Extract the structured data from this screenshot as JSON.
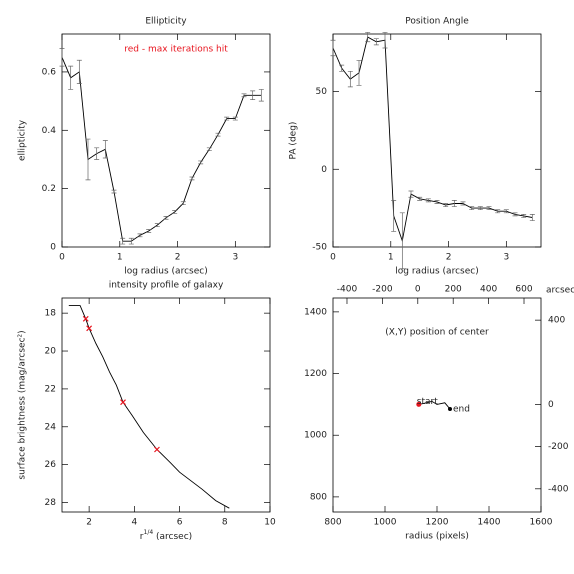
{
  "chart_data": [
    {
      "type": "line",
      "title": "Ellipticity",
      "x_label": "log radius (arcsec)",
      "y_label": "ellipticity",
      "annotation": {
        "text": "red - max iterations hit",
        "color": "#e8141e"
      },
      "xlim": [
        0,
        3.6
      ],
      "ylim": [
        0,
        0.73
      ],
      "xticks": [
        0,
        1,
        2,
        3
      ],
      "yticks": [
        0,
        0.2,
        0.4,
        0.6
      ],
      "series": [
        {
          "color": "#000000",
          "x": [
            0,
            0.15,
            0.3,
            0.45,
            0.6,
            0.75,
            0.9,
            1.05,
            1.2,
            1.35,
            1.5,
            1.65,
            1.8,
            1.95,
            2.1,
            2.25,
            2.4,
            2.55,
            2.7,
            2.85,
            3.0,
            3.15,
            3.3,
            3.45
          ],
          "values": [
            0.65,
            0.58,
            0.6,
            0.3,
            0.32,
            0.335,
            0.19,
            0.02,
            0.02,
            0.04,
            0.055,
            0.075,
            0.1,
            0.12,
            0.15,
            0.235,
            0.29,
            0.335,
            0.385,
            0.44,
            0.44,
            0.52,
            0.52,
            0.52
          ],
          "errors": [
            0.03,
            0.04,
            0.04,
            0.07,
            0.02,
            0.03,
            0.005,
            0.01,
            0.01,
            0.005,
            0.005,
            0.005,
            0.005,
            0.005,
            0.005,
            0.005,
            0.005,
            0.005,
            0.005,
            0.005,
            0.005,
            0.005,
            0.015,
            0.02
          ]
        }
      ]
    },
    {
      "type": "line",
      "title": "Position Angle",
      "x_label": "log radius (arcsec)",
      "y_label": "PA (deg)",
      "xlim": [
        0,
        3.6
      ],
      "ylim": [
        -50,
        87
      ],
      "xticks": [
        0,
        1,
        2,
        3
      ],
      "yticks": [
        -50,
        0,
        50
      ],
      "series": [
        {
          "color": "#000000",
          "x": [
            0,
            0.15,
            0.3,
            0.45,
            0.6,
            0.75,
            0.9,
            1.05,
            1.2,
            1.35,
            1.5,
            1.65,
            1.8,
            1.95,
            2.1,
            2.25,
            2.4,
            2.55,
            2.7,
            2.85,
            3.0,
            3.15,
            3.3,
            3.45
          ],
          "values": [
            78,
            65,
            58,
            62,
            85,
            82,
            83,
            -30,
            -46,
            -16,
            -19,
            -20,
            -21,
            -23,
            -22,
            -22,
            -25,
            -25,
            -25,
            -27,
            -27,
            -29,
            -30,
            -31
          ],
          "errors": [
            5,
            2,
            5,
            8,
            3,
            2,
            5,
            10,
            18,
            2,
            1,
            1,
            1,
            1,
            2,
            1,
            1,
            1,
            1,
            1,
            1,
            1,
            1,
            2
          ]
        }
      ]
    },
    {
      "type": "line",
      "title": "intensity profile of galaxy",
      "x_label": {
        "base": "r",
        "sup": "1/4",
        "unit": " (arcsec)"
      },
      "y_label": "surface brightness (mag/arcsec²)",
      "xlim": [
        0.8,
        10
      ],
      "ylim": [
        28.5,
        17.2
      ],
      "xticks": [
        2,
        4,
        6,
        8,
        10
      ],
      "yticks": [
        18,
        20,
        22,
        24,
        26,
        28
      ],
      "series": [
        {
          "color": "#000000",
          "x": [
            1.1,
            1.6,
            1.85,
            2.0,
            2.3,
            2.6,
            2.9,
            3.2,
            3.5,
            3.9,
            4.4,
            5.0,
            5.6,
            6.0,
            7.0,
            7.6,
            8.2
          ],
          "values": [
            17.6,
            17.6,
            18.3,
            18.8,
            19.6,
            20.3,
            21.1,
            21.8,
            22.7,
            23.4,
            24.3,
            25.2,
            25.9,
            26.4,
            27.3,
            27.9,
            28.3
          ]
        },
        {
          "color": "#e8141e",
          "marker": "cross",
          "x": [
            1.85,
            2.0,
            3.5,
            5.0
          ],
          "values": [
            18.3,
            18.8,
            22.7,
            25.2
          ]
        }
      ]
    },
    {
      "type": "track",
      "inner_title": "(X,Y) position of center",
      "x_label": "radius (pixels)",
      "x2_label": "arcsec",
      "xlim": [
        800,
        1600
      ],
      "ylim": [
        751,
        1445
      ],
      "xticks": [
        800,
        1000,
        1200,
        1400,
        1600
      ],
      "yticks": [
        800,
        1000,
        1200,
        1400
      ],
      "x2lim": [
        -479,
        696
      ],
      "x2ticks": [
        -400,
        -200,
        0,
        200,
        400,
        600
      ],
      "y2lim": [
        -510,
        505
      ],
      "y2ticks": [
        -400,
        -200,
        0,
        400
      ],
      "start_label": "start",
      "end_label": "end",
      "start_color": "#e8141e",
      "series": [
        {
          "color": "#000000",
          "x": [
            1130,
            1160,
            1180,
            1200,
            1230,
            1250
          ],
          "values": [
            1100,
            1105,
            1110,
            1100,
            1105,
            1085
          ]
        }
      ]
    }
  ]
}
